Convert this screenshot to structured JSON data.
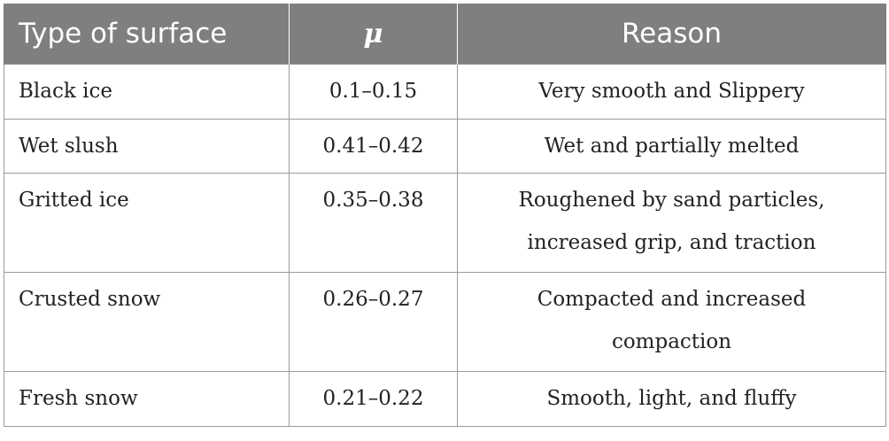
{
  "table": {
    "headers": {
      "surface": "Type of surface",
      "mu": "μ",
      "reason": "Reason"
    },
    "rows": [
      {
        "surface": "Black ice",
        "mu": "0.1–0.15",
        "reason_lines": [
          "Very smooth and Slippery"
        ]
      },
      {
        "surface": "Wet slush",
        "mu": "0.41–0.42",
        "reason_lines": [
          "Wet and partially melted"
        ]
      },
      {
        "surface": "Gritted ice",
        "mu": "0.35–0.38",
        "reason_lines": [
          "Roughened by sand particles,",
          "increased grip, and traction"
        ]
      },
      {
        "surface": "Crusted snow",
        "mu": "0.26–0.27",
        "reason_lines": [
          "Compacted and increased",
          "compaction"
        ]
      },
      {
        "surface": "Fresh snow",
        "mu": "0.21–0.22",
        "reason_lines": [
          "Smooth, light, and fluffy"
        ]
      }
    ]
  }
}
